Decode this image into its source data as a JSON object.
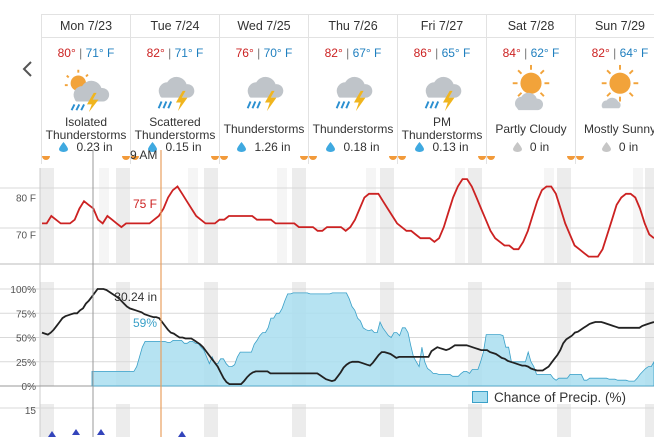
{
  "nav": {
    "prev_icon": "chevron-left-icon"
  },
  "days": [
    {
      "name": "Mon 7/23",
      "high": "80°",
      "low": "71° F",
      "cond_l1": "Isolated",
      "cond_l2": "Thunderstorms",
      "rain": "0.23 in",
      "icon": "partly-cloudy-thunderstorm-icon"
    },
    {
      "name": "Tue 7/24",
      "high": "82°",
      "low": "71° F",
      "cond_l1": "Scattered",
      "cond_l2": "Thunderstorms",
      "rain": "0.15 in",
      "icon": "thunderstorm-icon"
    },
    {
      "name": "Wed 7/25",
      "high": "76°",
      "low": "70° F",
      "cond_l1": "Thunderstorms",
      "cond_l2": "",
      "rain": "1.26 in",
      "icon": "thunderstorm-icon"
    },
    {
      "name": "Thu 7/26",
      "high": "82°",
      "low": "67° F",
      "cond_l1": "Thunderstorms",
      "cond_l2": "",
      "rain": "0.18 in",
      "icon": "thunderstorm-icon"
    },
    {
      "name": "Fri 7/27",
      "high": "86°",
      "low": "65° F",
      "cond_l1": "PM",
      "cond_l2": "Thunderstorms",
      "rain": "0.13 in",
      "icon": "thunderstorm-icon"
    },
    {
      "name": "Sat 7/28",
      "high": "84°",
      "low": "62° F",
      "cond_l1": "Partly Cloudy",
      "cond_l2": "",
      "rain": "0 in",
      "icon": "partly-cloudy-icon"
    },
    {
      "name": "Sun 7/29",
      "high": "82°",
      "low": "64° F",
      "cond_l1": "Mostly Sunny",
      "cond_l2": "",
      "rain": "0 in",
      "icon": "mostly-sunny-icon"
    }
  ],
  "cursor": {
    "time_label": "9 AM",
    "temp_label": "75 F",
    "pressure_label": "30.24 in",
    "precip_label": "59%"
  },
  "colors": {
    "temp": "#cc2222",
    "pressure": "#222222",
    "precip_fill": "#a9def0",
    "precip_line": "#3aa0c8",
    "cursor": "#e8a060",
    "hover": "#999999"
  },
  "legend": {
    "label": "Chance of Precip. (%)"
  },
  "chart_data": [
    {
      "type": "line",
      "title": "",
      "ylabel": "",
      "y_ticks": [
        "80 F",
        "70 F"
      ],
      "ylim": [
        62,
        88
      ],
      "series": [
        {
          "values": [
            73,
            73,
            75,
            74,
            73,
            73,
            73,
            74,
            77,
            79,
            78,
            77,
            74,
            73,
            75,
            74,
            73,
            72,
            73,
            73,
            73,
            73,
            73,
            73,
            74,
            75,
            77,
            80,
            82,
            83,
            81,
            79,
            77,
            75,
            74,
            73,
            73,
            73,
            74,
            74,
            75,
            75,
            75,
            75,
            75,
            75,
            74,
            74,
            74,
            74,
            73,
            73,
            73,
            73,
            73,
            72,
            72,
            72,
            72,
            71,
            71,
            72,
            72,
            72,
            72,
            71,
            72,
            74,
            77,
            80,
            81,
            81,
            81,
            79,
            77,
            75,
            73,
            72,
            71,
            71,
            70,
            69,
            69,
            69,
            68,
            69,
            72,
            76,
            80,
            83,
            85,
            85,
            83,
            80,
            77,
            74,
            71,
            69,
            68,
            67,
            67,
            66,
            66,
            68,
            71,
            75,
            79,
            82,
            83,
            83,
            81,
            77,
            73,
            70,
            67,
            66,
            65,
            64,
            64,
            64,
            66,
            70,
            74,
            78,
            80,
            81,
            81,
            80,
            77,
            73,
            70,
            69
          ]
        }
      ]
    },
    {
      "type": "area",
      "title": "",
      "ylabel": "",
      "y_ticks": [
        "100%",
        "75%",
        "50%",
        "25%",
        "0%"
      ],
      "ylim": [
        0,
        100
      ],
      "series": [
        {
          "name": "Chance of Precip. (%)",
          "values": [
            15,
            15,
            15,
            15,
            15,
            15,
            15,
            15,
            15,
            15,
            15,
            15,
            15,
            15,
            15,
            15,
            20,
            30,
            40,
            46,
            46,
            46,
            46,
            46,
            46,
            46,
            46,
            45,
            45,
            47,
            47,
            47,
            47,
            44,
            44,
            46,
            46,
            44,
            44,
            40,
            37,
            30,
            23,
            30,
            23,
            23,
            28,
            28,
            23,
            20,
            20,
            22,
            30,
            35,
            35,
            35,
            35,
            35,
            43,
            47,
            52,
            55,
            55,
            60,
            70,
            70,
            75,
            75,
            80,
            88,
            95,
            95,
            96,
            96,
            96,
            96,
            96,
            96,
            95,
            95,
            95,
            95,
            95,
            95,
            95,
            95,
            96,
            96,
            96,
            96,
            96,
            96,
            90,
            82,
            78,
            70,
            67,
            60,
            58,
            57,
            58,
            55,
            55,
            66,
            60,
            56,
            52,
            50,
            55,
            55,
            52,
            60,
            60,
            55,
            42,
            30,
            25,
            20,
            40,
            25,
            18,
            16,
            13,
            13,
            12,
            12,
            12,
            12,
            12,
            10,
            10,
            10,
            13,
            15,
            15,
            13,
            17,
            17,
            17,
            25,
            35,
            53,
            53,
            53,
            53,
            53,
            53,
            52,
            40,
            40,
            25,
            25,
            25,
            25,
            25,
            25,
            35,
            25,
            20,
            12,
            12,
            12,
            12,
            12,
            12,
            8,
            6,
            8,
            8,
            8,
            8,
            12,
            12,
            12,
            12,
            12,
            6,
            6,
            8,
            8,
            8,
            8,
            8,
            8,
            8,
            7,
            7,
            7,
            6,
            6,
            6,
            6,
            5,
            5,
            5,
            8,
            12,
            15,
            18,
            20,
            20,
            25
          ]
        },
        {
          "name": "Pressure",
          "values": [
            55,
            54,
            53,
            55,
            58,
            62,
            66,
            70,
            72,
            73,
            74,
            75,
            75,
            78,
            80,
            85,
            88,
            92,
            96,
            100,
            100,
            100,
            99,
            97,
            95,
            93,
            91,
            88,
            85,
            82,
            80,
            79,
            78,
            77,
            76,
            74,
            73,
            72,
            71,
            71,
            70,
            66,
            62,
            58,
            55,
            54,
            52,
            50,
            50,
            49,
            49,
            49,
            47,
            45,
            43,
            40,
            36,
            32,
            28,
            24,
            20,
            14,
            8,
            4,
            2,
            2,
            2,
            2,
            2,
            5,
            9,
            12,
            14,
            15,
            15,
            15,
            15,
            15,
            13,
            13,
            13,
            13,
            13,
            13,
            13,
            13,
            13,
            13,
            13,
            13,
            13,
            13,
            13,
            13,
            13,
            11,
            9,
            7,
            6,
            5,
            6,
            10,
            14,
            19,
            22,
            24,
            25,
            25,
            25,
            24,
            23,
            22,
            21,
            24,
            28,
            32,
            35,
            35,
            34,
            33,
            31,
            29,
            30,
            30,
            30,
            30,
            30,
            30,
            30,
            30,
            30,
            30,
            30,
            36,
            38,
            40,
            39,
            38,
            37,
            38,
            40,
            42,
            42,
            42,
            42,
            42,
            41,
            40,
            39,
            38,
            37,
            37,
            37,
            35,
            34,
            33,
            31,
            29,
            28,
            26,
            25,
            24,
            23,
            22,
            21,
            21,
            20,
            18,
            17,
            16,
            16,
            16,
            18,
            20,
            24,
            28,
            32,
            37,
            44,
            48,
            50,
            52,
            55,
            56,
            58,
            60,
            62,
            64,
            65,
            66,
            66,
            66,
            65,
            64,
            63,
            62,
            61,
            60,
            60,
            60,
            60,
            60,
            60,
            60,
            60,
            62,
            63,
            64,
            65,
            66
          ]
        }
      ]
    }
  ]
}
